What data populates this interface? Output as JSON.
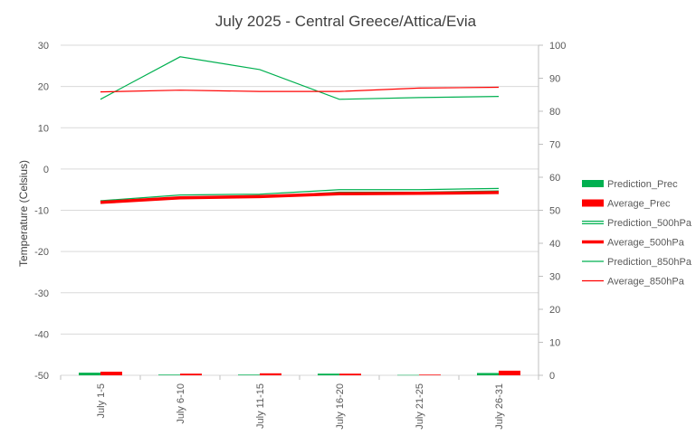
{
  "chart_data": {
    "type": "line",
    "title": "July 2025 - Central Greece/Attica/Evia",
    "xlabel": "",
    "ylabel": "Temperature (Celsius)",
    "ylabel_right": "",
    "categories": [
      "July 1-5",
      "July 6-10",
      "July 11-15",
      "July 16-20",
      "July 21-25",
      "July 26-31"
    ],
    "ylim": [
      -50,
      30
    ],
    "y_ticks": [
      30,
      20,
      10,
      0,
      -10,
      -20,
      -30,
      -40,
      -50
    ],
    "y2lim": [
      0,
      100
    ],
    "y2_ticks": [
      100,
      90,
      80,
      70,
      60,
      50,
      40,
      30,
      20,
      10,
      0
    ],
    "grid": true,
    "legend_position": "right",
    "series": [
      {
        "name": "Prediction_Prec",
        "kind": "bar",
        "axis": "right",
        "color": "#00b050",
        "values": [
          0.8,
          0.2,
          0.2,
          0.5,
          0.1,
          0.7
        ]
      },
      {
        "name": "Average_Prec",
        "kind": "bar",
        "axis": "right",
        "color": "#ff0000",
        "values": [
          1.1,
          0.5,
          0.6,
          0.5,
          0.2,
          1.4
        ]
      },
      {
        "name": "Prediction_500hPa",
        "kind": "line",
        "style": "double",
        "axis": "left",
        "color": "#00b050",
        "values": [
          -8.0,
          -6.6,
          -6.4,
          -5.3,
          -5.3,
          -5.0
        ]
      },
      {
        "name": "Average_500hPa",
        "kind": "line",
        "style": "thick",
        "axis": "left",
        "color": "#ff0000",
        "values": [
          -8.1,
          -7.0,
          -6.7,
          -6.0,
          -5.9,
          -5.7
        ]
      },
      {
        "name": "Prediction_850hPa",
        "kind": "line",
        "style": "thin",
        "axis": "left",
        "color": "#00b050",
        "values": [
          16.9,
          27.2,
          24.1,
          16.9,
          17.3,
          17.6
        ]
      },
      {
        "name": "Average_850hPa",
        "kind": "line",
        "style": "thin",
        "axis": "left",
        "color": "#ff0000",
        "values": [
          18.7,
          19.1,
          18.8,
          18.8,
          19.6,
          19.8
        ]
      }
    ]
  }
}
